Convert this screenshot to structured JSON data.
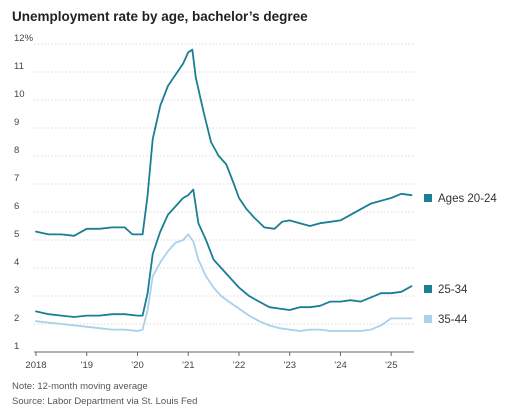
{
  "chart_data": {
    "type": "line",
    "title": "Unemployment rate by age, bachelor’s degree",
    "ylim": [
      1,
      12
    ],
    "y_ticks": [
      "12%",
      "11",
      "10",
      "9",
      "8",
      "7",
      "6",
      "5",
      "4",
      "3",
      "2",
      "1"
    ],
    "x_ticks": [
      "2018",
      "’19",
      "’20",
      "’21",
      "’22",
      "’23",
      "’24",
      "’25"
    ],
    "grid": true,
    "series": [
      {
        "name": "Ages 20-24",
        "color": "#1a7e95",
        "x": [
          2018.0,
          2018.25,
          2018.5,
          2018.75,
          2019.0,
          2019.25,
          2019.5,
          2019.75,
          2019.9,
          2020.0,
          2020.1,
          2020.2,
          2020.3,
          2020.45,
          2020.6,
          2020.75,
          2020.9,
          2021.0,
          2021.08,
          2021.15,
          2021.3,
          2021.45,
          2021.6,
          2021.75,
          2021.9,
          2022.0,
          2022.15,
          2022.3,
          2022.5,
          2022.7,
          2022.85,
          2023.0,
          2023.2,
          2023.4,
          2023.6,
          2023.8,
          2024.0,
          2024.2,
          2024.4,
          2024.6,
          2024.8,
          2025.0,
          2025.2,
          2025.4
        ],
        "values": [
          5.3,
          5.2,
          5.2,
          5.15,
          5.4,
          5.4,
          5.45,
          5.45,
          5.2,
          5.2,
          5.2,
          6.6,
          8.6,
          9.8,
          10.5,
          10.9,
          11.3,
          11.7,
          11.8,
          10.8,
          9.6,
          8.5,
          8.0,
          7.7,
          7.0,
          6.5,
          6.1,
          5.8,
          5.45,
          5.4,
          5.65,
          5.7,
          5.6,
          5.5,
          5.6,
          5.65,
          5.7,
          5.9,
          6.1,
          6.3,
          6.4,
          6.5,
          6.65,
          6.6
        ]
      },
      {
        "name": "25-34",
        "color": "#1a7e95",
        "x": [
          2018.0,
          2018.25,
          2018.5,
          2018.75,
          2019.0,
          2019.25,
          2019.5,
          2019.75,
          2020.0,
          2020.1,
          2020.2,
          2020.3,
          2020.45,
          2020.6,
          2020.75,
          2020.9,
          2021.0,
          2021.1,
          2021.2,
          2021.35,
          2021.5,
          2021.65,
          2021.8,
          2022.0,
          2022.2,
          2022.4,
          2022.6,
          2022.8,
          2023.0,
          2023.2,
          2023.4,
          2023.6,
          2023.8,
          2024.0,
          2024.2,
          2024.4,
          2024.6,
          2024.8,
          2025.0,
          2025.2,
          2025.4
        ],
        "values": [
          2.45,
          2.35,
          2.3,
          2.25,
          2.3,
          2.3,
          2.35,
          2.35,
          2.3,
          2.3,
          3.1,
          4.5,
          5.3,
          5.9,
          6.2,
          6.5,
          6.6,
          6.8,
          5.6,
          5.0,
          4.3,
          4.0,
          3.7,
          3.3,
          3.0,
          2.8,
          2.6,
          2.55,
          2.5,
          2.6,
          2.6,
          2.65,
          2.8,
          2.8,
          2.85,
          2.8,
          2.95,
          3.1,
          3.1,
          3.15,
          3.35
        ]
      },
      {
        "name": "35-44",
        "color": "#a9d1ea",
        "x": [
          2018.0,
          2018.25,
          2018.5,
          2018.75,
          2019.0,
          2019.25,
          2019.5,
          2019.75,
          2020.0,
          2020.1,
          2020.2,
          2020.3,
          2020.45,
          2020.6,
          2020.75,
          2020.9,
          2021.0,
          2021.1,
          2021.2,
          2021.35,
          2021.5,
          2021.65,
          2021.8,
          2022.0,
          2022.2,
          2022.4,
          2022.6,
          2022.8,
          2023.0,
          2023.2,
          2023.4,
          2023.6,
          2023.8,
          2024.0,
          2024.2,
          2024.4,
          2024.6,
          2024.8,
          2025.0,
          2025.2,
          2025.4
        ],
        "values": [
          2.1,
          2.05,
          2.0,
          1.95,
          1.9,
          1.85,
          1.8,
          1.8,
          1.75,
          1.8,
          2.5,
          3.7,
          4.2,
          4.6,
          4.9,
          5.0,
          5.2,
          4.95,
          4.3,
          3.7,
          3.3,
          3.0,
          2.8,
          2.55,
          2.3,
          2.1,
          1.95,
          1.85,
          1.8,
          1.75,
          1.8,
          1.8,
          1.75,
          1.75,
          1.75,
          1.75,
          1.8,
          1.95,
          2.2,
          2.2,
          2.2
        ]
      }
    ]
  },
  "footer": {
    "note": "Note: 12-month moving average",
    "source": "Source: Labor Department via St. Louis Fed"
  }
}
